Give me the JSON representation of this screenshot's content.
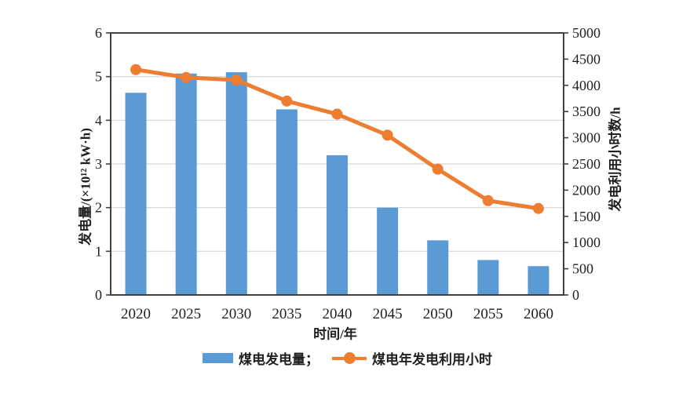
{
  "chart_data": {
    "type": "bar+line combo",
    "categories": [
      "2020",
      "2025",
      "2030",
      "2035",
      "2040",
      "2045",
      "2050",
      "2055",
      "2060"
    ],
    "series": [
      {
        "name": "煤电发电量",
        "type": "bar",
        "axis": "left",
        "values": [
          4.63,
          5.07,
          5.1,
          4.25,
          3.2,
          2.0,
          1.25,
          0.8,
          0.66
        ]
      },
      {
        "name": "煤电年发电利用小时",
        "type": "line",
        "axis": "right",
        "values": [
          4300,
          4150,
          4100,
          3700,
          3450,
          3050,
          2400,
          1800,
          1650
        ]
      }
    ],
    "title": "",
    "xlabel": "时间/年",
    "ylabel_left": "发电量/(×10¹² kW·h)",
    "ylabel_right": "发电利用小时数/h",
    "ylim_left": [
      0,
      6
    ],
    "ytick_step_left": 1,
    "ylim_right": [
      0,
      5000
    ],
    "ytick_step_right": 500,
    "grid": true,
    "legend_position": "bottom"
  },
  "legend": {
    "items": [
      {
        "label": "煤电发电量；",
        "series": "bar"
      },
      {
        "label": "煤电年发电利用小时",
        "series": "line"
      }
    ]
  },
  "colors": {
    "bar": "#5B9BD5",
    "line": "#ED7D31",
    "grid": "#D6D6D6",
    "frame": "#404040",
    "text": "#1f1f1f",
    "background": "#ffffff"
  }
}
